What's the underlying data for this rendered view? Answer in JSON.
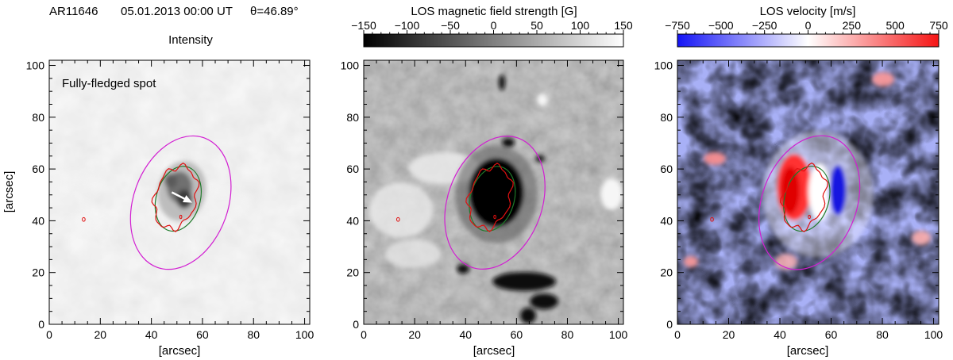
{
  "header": {
    "region": "AR11646",
    "date": "05.01.2013 00:00 UT",
    "angle": "θ=46.89°"
  },
  "colors": {
    "magenta": "#d21ed2",
    "red": "#e01010",
    "green": "#1f7a2a",
    "blue_max": "#1a1aff",
    "red_max": "#ff1010"
  },
  "chart_data": [
    {
      "type": "heatmap",
      "title": "Intensity",
      "annotation": "Fully-fledged spot",
      "xlabel": "[arcsec]",
      "ylabel": "[arcsec]",
      "xlim": [
        0,
        102
      ],
      "ylim": [
        0,
        102
      ],
      "xticks": [
        0,
        20,
        40,
        60,
        80,
        100
      ],
      "yticks": [
        0,
        20,
        40,
        60,
        80,
        100
      ],
      "arrow": {
        "from": [
          48,
          51
        ],
        "to": [
          56,
          47
        ]
      },
      "ellipse_center": [
        51,
        47
      ],
      "colormap": "gray"
    },
    {
      "type": "heatmap",
      "title": "LOS magnetic field strength [G]",
      "xlabel": "[arcsec]",
      "ylabel": "",
      "xlim": [
        0,
        102
      ],
      "ylim": [
        0,
        102
      ],
      "xticks": [
        0,
        20,
        40,
        60,
        80,
        100
      ],
      "yticks": [
        0,
        20,
        40,
        60,
        80,
        100
      ],
      "colorbar": {
        "min": -150,
        "max": 150,
        "ticks": [
          -150,
          -100,
          -50,
          0,
          50,
          100,
          150
        ]
      },
      "colormap": "gray"
    },
    {
      "type": "heatmap",
      "title": "LOS velocity [m/s]",
      "xlabel": "[arcsec]",
      "ylabel": "",
      "xlim": [
        0,
        102
      ],
      "ylim": [
        0,
        102
      ],
      "xticks": [
        0,
        20,
        40,
        60,
        80,
        100
      ],
      "yticks": [
        0,
        20,
        40,
        60,
        80,
        100
      ],
      "colorbar": {
        "min": -750,
        "max": 750,
        "ticks": [
          -750,
          -500,
          -250,
          0,
          250,
          500,
          750
        ]
      },
      "colormap": "blue-white-red"
    }
  ]
}
